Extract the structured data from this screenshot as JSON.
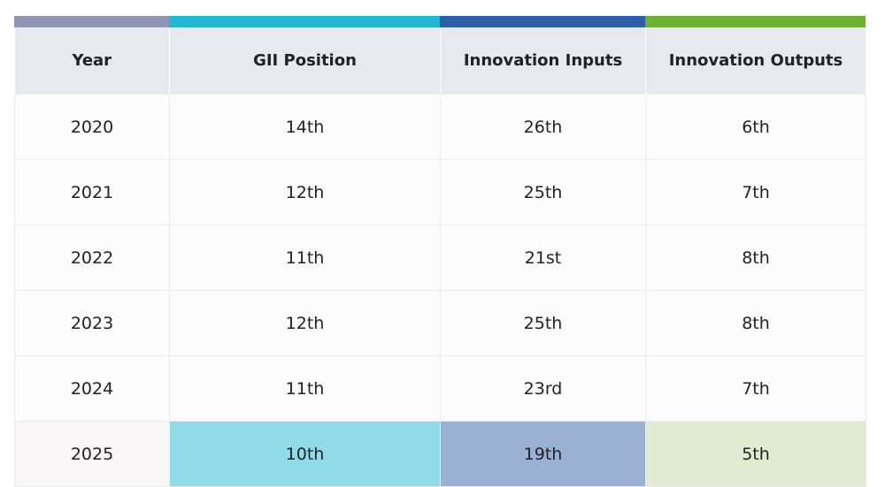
{
  "table": {
    "header": [
      "Year",
      "GII Position",
      "Innovation Inputs",
      "Innovation Outputs"
    ],
    "rows": [
      [
        "2020",
        "14th",
        "26th",
        "6th"
      ],
      [
        "2021",
        "12th",
        "25th",
        "7th"
      ],
      [
        "2022",
        "11th",
        "21st",
        "8th"
      ],
      [
        "2023",
        "12th",
        "25th",
        "8th"
      ],
      [
        "2024",
        "11th",
        "23rd",
        "7th"
      ],
      [
        "2025",
        "10th",
        "19th",
        "5th"
      ]
    ]
  }
}
